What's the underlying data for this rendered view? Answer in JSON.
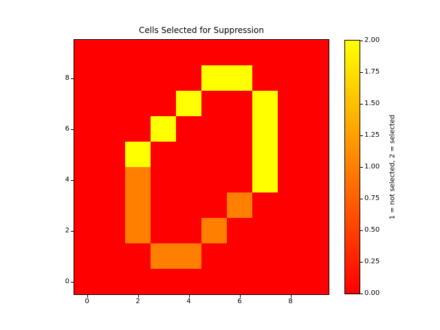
{
  "figure": {
    "background_color": "#ffffff"
  },
  "chart_data": {
    "type": "heatmap",
    "title": "Cells Selected for Suppression",
    "xlabel": "",
    "ylabel": "",
    "xlim": [
      -0.5,
      9.5
    ],
    "ylim": [
      -0.5,
      9.5
    ],
    "grid": false,
    "x_tick_values": [
      0,
      2,
      4,
      6,
      8
    ],
    "x_tick_labels": [
      "0",
      "2",
      "4",
      "6",
      "8"
    ],
    "y_tick_values": [
      0,
      2,
      4,
      6,
      8
    ],
    "y_tick_labels": [
      "0",
      "2",
      "4",
      "6",
      "8"
    ],
    "colormap_name": "autumn",
    "value_colors": {
      "0": "#ff0000",
      "1": "#ff8000",
      "2": "#ffff00"
    },
    "colorbar": {
      "label": "1 = not selected, 2 = selected",
      "min": 0,
      "max": 2,
      "tick_values": [
        0,
        0.25,
        0.5,
        0.75,
        1.0,
        1.25,
        1.5,
        1.75,
        2.0
      ],
      "tick_labels": [
        "0.00",
        "0.25",
        "0.50",
        "0.75",
        "1.00",
        "1.25",
        "1.50",
        "1.75",
        "2.00"
      ],
      "color_min": "#ff0000",
      "color_max": "#ffff00"
    },
    "matrix_rows_top_to_bottom": [
      [
        0,
        0,
        0,
        0,
        0,
        0,
        0,
        0,
        0,
        0
      ],
      [
        0,
        0,
        0,
        0,
        0,
        2,
        2,
        0,
        0,
        0
      ],
      [
        0,
        0,
        0,
        0,
        2,
        0,
        0,
        2,
        0,
        0
      ],
      [
        0,
        0,
        0,
        2,
        0,
        0,
        0,
        2,
        0,
        0
      ],
      [
        0,
        0,
        2,
        0,
        0,
        0,
        0,
        2,
        0,
        0
      ],
      [
        0,
        0,
        1,
        0,
        0,
        0,
        0,
        2,
        0,
        0
      ],
      [
        0,
        0,
        1,
        0,
        0,
        0,
        1,
        0,
        0,
        0
      ],
      [
        0,
        0,
        1,
        0,
        0,
        1,
        0,
        0,
        0,
        0
      ],
      [
        0,
        0,
        0,
        1,
        1,
        0,
        0,
        0,
        0,
        0
      ],
      [
        0,
        0,
        0,
        0,
        0,
        0,
        0,
        0,
        0,
        0
      ]
    ]
  }
}
